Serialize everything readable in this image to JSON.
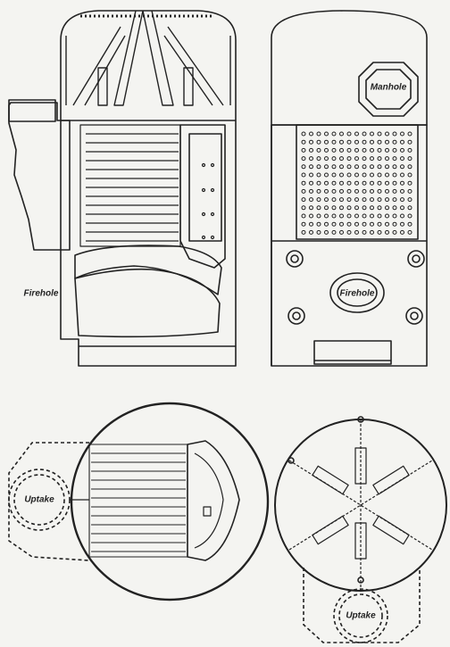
{
  "labels": {
    "firehole_section": "Firehole",
    "manhole": "Manhole",
    "firehole_front": "Firehole",
    "uptake_left": "Uptake",
    "uptake_bottom": "Uptake"
  },
  "colors": {
    "paper": "#f4f4f1",
    "ink": "#222222"
  }
}
